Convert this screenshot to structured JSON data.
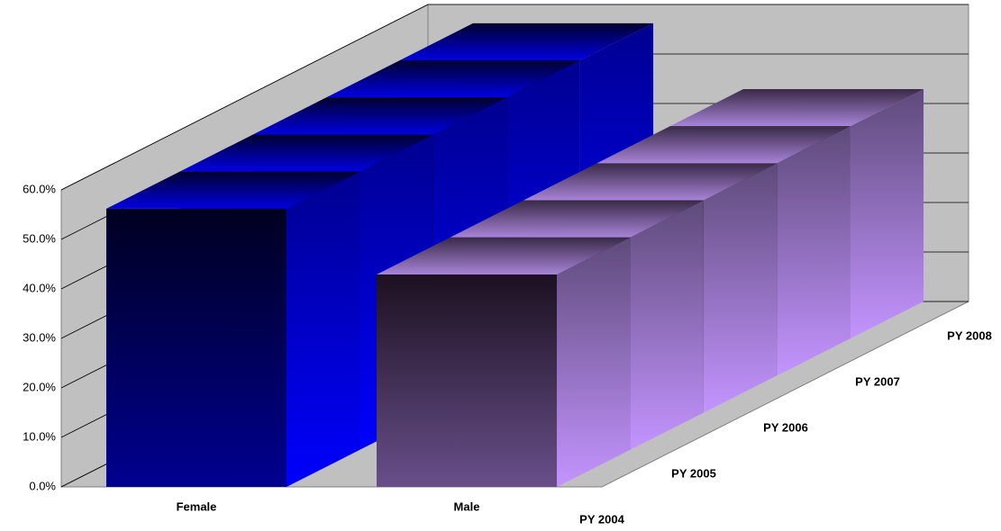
{
  "chart_data": {
    "type": "bar3d",
    "categories": [
      "Female",
      "Male"
    ],
    "colors": [
      "#0000ff",
      "#c394ff"
    ],
    "series": [
      {
        "name": "PY 2004",
        "values": [
          56.2,
          42.9
        ]
      },
      {
        "name": "PY 2005",
        "values": [
          56.2,
          42.9
        ]
      },
      {
        "name": "PY 2006",
        "values": [
          56.2,
          42.9
        ]
      },
      {
        "name": "PY 2007",
        "values": [
          56.2,
          42.9
        ]
      },
      {
        "name": "PY 2008",
        "values": [
          56.2,
          42.9
        ]
      }
    ],
    "ylim": [
      0,
      60
    ],
    "yticks": [
      {
        "value": 0,
        "label": "0.0%"
      },
      {
        "value": 10,
        "label": "10.0%"
      },
      {
        "value": 20,
        "label": "20.0%"
      },
      {
        "value": 30,
        "label": "30.0%"
      },
      {
        "value": 40,
        "label": "40.0%"
      },
      {
        "value": 50,
        "label": "50.0%"
      },
      {
        "value": 60,
        "label": "60.0%"
      }
    ],
    "grid": true
  }
}
